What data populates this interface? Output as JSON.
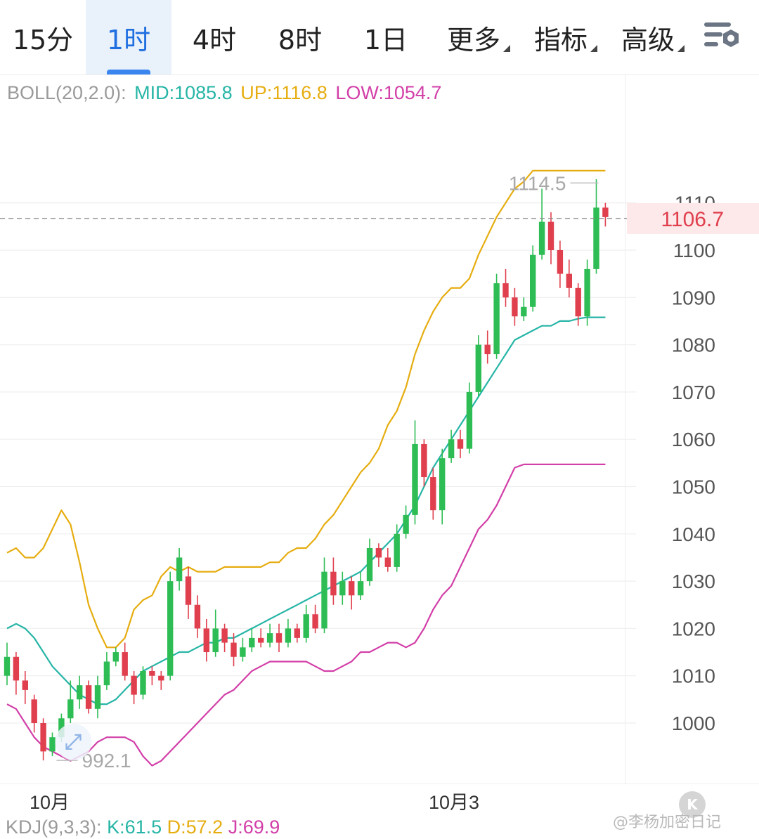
{
  "tabs": [
    {
      "label": "15分",
      "active": false
    },
    {
      "label": "1时",
      "active": true
    },
    {
      "label": "4时",
      "active": false
    },
    {
      "label": "8时",
      "active": false
    },
    {
      "label": "1日",
      "active": false
    },
    {
      "label": "更多",
      "active": false,
      "dropdown": true
    },
    {
      "label": "指标",
      "active": false,
      "dropdown": true
    },
    {
      "label": "高级",
      "active": false,
      "dropdown": true
    }
  ],
  "settings_icon": "chart-settings-icon",
  "boll": {
    "label": "BOLL(20,2.0):",
    "mid": "MID:1085.8",
    "up": "UP:1116.8",
    "low": "LOW:1054.7",
    "colors": {
      "label": "#9a9a9a",
      "mid": "#26b5a6",
      "up": "#e6ad10",
      "low": "#d23fa8"
    }
  },
  "kdj": {
    "label": "KDJ(9,3,3):",
    "k": "K:61.5",
    "d": "D:57.2",
    "j": "J:69.9",
    "colors": {
      "label": "#9a9a9a",
      "k": "#26b5a6",
      "d": "#e6ad10",
      "j": "#d23fa8"
    }
  },
  "colors": {
    "up_candle": "#2ebd55",
    "down_candle": "#e0404e",
    "price_tag_bg": "#fde9ea",
    "price_tag_text": "#e0404e"
  },
  "badge_k": "K",
  "watermark": "@李杨加密日记",
  "chart_data": {
    "type": "candlestick",
    "y_ticks": [
      "1000",
      "1010",
      "1020",
      "1030",
      "1040",
      "1050",
      "1060",
      "1070",
      "1080",
      "1090",
      "1100",
      "1110"
    ],
    "ylim": [
      990,
      1126
    ],
    "x_labels": [
      {
        "label": "10月",
        "index": 7
      },
      {
        "label": "10月3",
        "index": 51
      }
    ],
    "last_price": "1106.7",
    "high_annotation": {
      "label": "1114.5",
      "value": 1114.5,
      "index": 66
    },
    "low_annotation": {
      "label": "992.1",
      "value": 992.1,
      "index": 5
    },
    "candles": [
      [
        1010,
        1014,
        1017,
        1008
      ],
      [
        1014,
        1009,
        1015,
        1006
      ],
      [
        1009,
        1007,
        1011,
        1004
      ],
      [
        1005,
        1000,
        1006,
        998
      ],
      [
        1000,
        994,
        1001,
        992.1
      ],
      [
        994,
        997,
        998,
        993
      ],
      [
        997,
        1001,
        1002,
        996
      ],
      [
        1001,
        1005,
        1009,
        1000
      ],
      [
        1005,
        1008,
        1010,
        1003
      ],
      [
        1008,
        1003,
        1009,
        1002
      ],
      [
        1003,
        1008,
        1010,
        1001
      ],
      [
        1008,
        1013,
        1015,
        1007
      ],
      [
        1013,
        1015,
        1016,
        1012
      ],
      [
        1015,
        1010,
        1017,
        1009
      ],
      [
        1010,
        1006,
        1011,
        1004
      ],
      [
        1006,
        1011,
        1012,
        1005
      ],
      [
        1011,
        1010,
        1012,
        1008
      ],
      [
        1010,
        1009,
        1011,
        1007
      ],
      [
        1010,
        1030,
        1032,
        1009
      ],
      [
        1030,
        1035,
        1037,
        1028
      ],
      [
        1031,
        1025,
        1033,
        1022
      ],
      [
        1025,
        1020,
        1027,
        1018
      ],
      [
        1020,
        1015,
        1022,
        1013
      ],
      [
        1015,
        1020,
        1024,
        1014
      ],
      [
        1020,
        1017,
        1021,
        1015
      ],
      [
        1017,
        1014,
        1019,
        1012
      ],
      [
        1014,
        1016,
        1018,
        1013
      ],
      [
        1016,
        1018,
        1020,
        1015
      ],
      [
        1018,
        1017,
        1020,
        1016
      ],
      [
        1017,
        1019,
        1021,
        1016
      ],
      [
        1019,
        1017,
        1021,
        1015
      ],
      [
        1017,
        1020,
        1022,
        1016
      ],
      [
        1020,
        1018,
        1021,
        1017
      ],
      [
        1018,
        1023,
        1025,
        1017
      ],
      [
        1023,
        1020,
        1025,
        1019
      ],
      [
        1020,
        1032,
        1035,
        1019
      ],
      [
        1032,
        1027,
        1035,
        1025
      ],
      [
        1027,
        1030,
        1032,
        1025
      ],
      [
        1030,
        1027,
        1031,
        1024
      ],
      [
        1027,
        1030,
        1032,
        1026
      ],
      [
        1030,
        1037,
        1039,
        1029
      ],
      [
        1037,
        1035,
        1038,
        1033
      ],
      [
        1035,
        1033,
        1037,
        1032
      ],
      [
        1033,
        1040,
        1042,
        1032
      ],
      [
        1040,
        1044,
        1046,
        1039
      ],
      [
        1044,
        1059,
        1064,
        1042
      ],
      [
        1059,
        1052,
        1060,
        1050
      ],
      [
        1052,
        1045,
        1054,
        1043
      ],
      [
        1045,
        1056,
        1058,
        1042
      ],
      [
        1056,
        1060,
        1062,
        1055
      ],
      [
        1060,
        1058,
        1062,
        1056
      ],
      [
        1058,
        1070,
        1072,
        1057
      ],
      [
        1070,
        1080,
        1082,
        1069
      ],
      [
        1080,
        1078,
        1083,
        1076
      ],
      [
        1078,
        1093,
        1095,
        1077
      ],
      [
        1093,
        1090,
        1096,
        1088
      ],
      [
        1090,
        1086,
        1092,
        1084
      ],
      [
        1086,
        1088,
        1090,
        1085
      ],
      [
        1088,
        1099,
        1101,
        1087
      ],
      [
        1099,
        1106,
        1113,
        1098
      ],
      [
        1106,
        1100,
        1108,
        1097
      ],
      [
        1100,
        1095,
        1102,
        1092
      ],
      [
        1095,
        1092,
        1098,
        1090
      ],
      [
        1092,
        1086,
        1093,
        1084
      ],
      [
        1086,
        1096,
        1098,
        1084
      ],
      [
        1096,
        1109,
        1115,
        1095
      ],
      [
        1109,
        1107,
        1110,
        1105
      ]
    ],
    "boll_up": [
      1036,
      1037,
      1035,
      1035,
      1037,
      1041,
      1045,
      1042,
      1034,
      1025,
      1020,
      1016,
      1016,
      1018,
      1024,
      1026,
      1027,
      1031,
      1033,
      1032,
      1033,
      1032,
      1032,
      1032,
      1033,
      1033,
      1033,
      1033,
      1033,
      1034,
      1034,
      1036,
      1037,
      1037,
      1039,
      1042,
      1044,
      1047,
      1050,
      1053,
      1055,
      1058,
      1063,
      1066,
      1071,
      1078,
      1083,
      1087,
      1090,
      1092,
      1092,
      1094,
      1099,
      1103,
      1107,
      1110,
      1113,
      1114.5,
      1116.8,
      1116.8,
      1116.8,
      1116.8,
      1116.8,
      1116.8,
      1116.8,
      1116.8,
      1116.8
    ],
    "boll_mid": [
      1020,
      1021,
      1020,
      1018,
      1015,
      1012,
      1010,
      1008,
      1006,
      1005,
      1004,
      1004,
      1005,
      1007,
      1009,
      1011,
      1012,
      1013,
      1014,
      1015,
      1015,
      1016,
      1017,
      1017,
      1018,
      1018,
      1019,
      1020,
      1021,
      1022,
      1023,
      1024,
      1025,
      1026,
      1027,
      1028,
      1029,
      1030,
      1031,
      1032,
      1034,
      1036,
      1038,
      1040,
      1043,
      1046,
      1050,
      1054,
      1057,
      1060,
      1063,
      1066,
      1069,
      1072,
      1075,
      1078,
      1081,
      1082,
      1083,
      1084,
      1084,
      1085,
      1085,
      1085.5,
      1085.8,
      1085.8,
      1085.8
    ],
    "boll_low": [
      1004,
      1003,
      1000,
      997,
      995,
      994,
      993,
      992,
      993,
      994,
      996,
      997,
      997,
      997,
      996,
      993,
      991,
      992,
      994,
      996,
      998,
      1000,
      1002,
      1004,
      1006,
      1007,
      1009,
      1011,
      1012,
      1013,
      1013,
      1013,
      1013,
      1013,
      1012,
      1011,
      1011,
      1012,
      1013,
      1015,
      1015,
      1016,
      1017,
      1017,
      1016,
      1017,
      1020,
      1024,
      1027,
      1029,
      1033,
      1037,
      1041,
      1043,
      1046,
      1050,
      1054,
      1054.7,
      1054.7,
      1054.7,
      1054.7,
      1054.7,
      1054.7,
      1054.7,
      1054.7,
      1054.7,
      1054.7
    ]
  }
}
